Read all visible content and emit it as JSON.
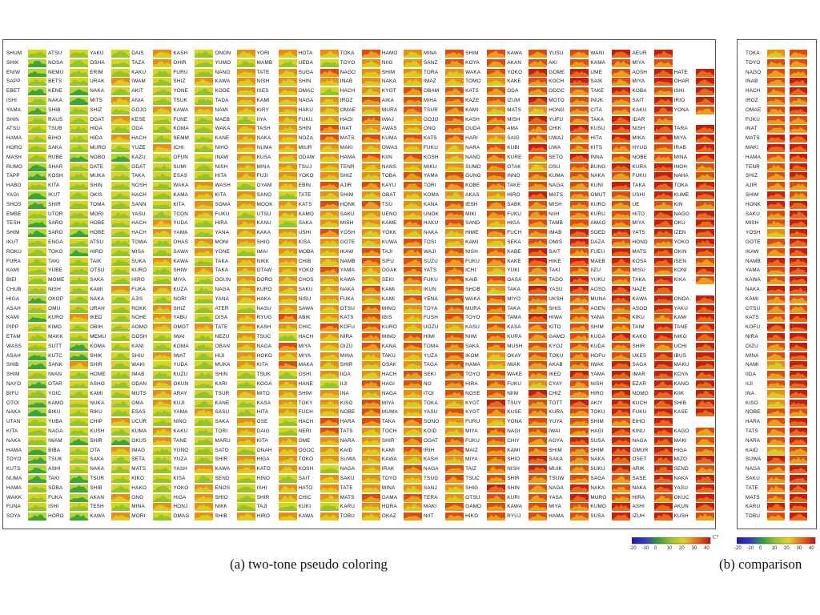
{
  "chart_data": [
    {
      "type": "heatmap",
      "panel": "a",
      "caption": "(a) two-tone pseudo coloring",
      "colorbar": {
        "ticks": [
          "-20",
          "-10",
          "0",
          "10",
          "20",
          "30",
          "40"
        ],
        "unit": "C°"
      },
      "stations": [
        [
          "SHUM",
          "ATSU",
          "YAKU",
          "DAIS",
          "KASH",
          "ONON",
          "YORI",
          "HOTA",
          "TOKA",
          "HAMO",
          "MINA",
          "SHIM",
          "KAWA",
          "YUSU",
          "WANI",
          "AEUR"
        ],
        [
          "SHIK",
          "NOSA",
          "OSHA",
          "TAZA",
          "OHIR",
          "YUMO",
          "MAMB",
          "UEDA",
          "TOYO",
          "NIIG",
          "SANZ",
          "KOYA",
          "AKAN",
          "AKI",
          "KAMA",
          "MIYA"
        ],
        [
          "ENIW",
          "NEMU",
          "ERIM",
          "KAKU",
          "FURU",
          "NANG",
          "TATE",
          "SUGA",
          "NAGO",
          "SHIM",
          "TORA",
          "WAKA",
          "YOKO",
          "GOME",
          "UME",
          "AOSH",
          "HATE"
        ],
        [
          "SAPP",
          "BETS",
          "URAK",
          "IWAM",
          "SHIZ",
          "KAWA",
          "NISH",
          "SHIN",
          "INAB",
          "NAKA",
          "IMAZ",
          "TOMO",
          "KAKE",
          "KOCH",
          "SAIK",
          "MIYA",
          "OHAR"
        ],
        [
          "EBET",
          "KENE",
          "NAKA",
          "AKIT",
          "YONE",
          "KODE",
          "ISES",
          "OMAC",
          "HACH",
          "KYOT",
          "OBAM",
          "KATS",
          "ODA",
          "ODOC",
          "TAKE",
          "KOBA",
          "ISHI"
        ],
        [
          "ISHI",
          "NAKA",
          "MITS",
          "ANIA",
          "TSUK",
          "TADA",
          "KAMI",
          "NAGA",
          "IROZ",
          "AIKA",
          "MIHA",
          "KAZE",
          "IZUM",
          "MOTO",
          "INUK",
          "SAIT",
          "IRIO"
        ],
        [
          "YAMA",
          "SHIB",
          "SHIZ",
          "GOJO",
          "KAWA",
          "NAMI",
          "KIRY",
          "HAKU",
          "OMAE",
          "MURA",
          "TSUR",
          "KAMI",
          "MATS",
          "HONG",
          "CITA",
          "KAKU",
          "YONA"
        ],
        [
          "SHIN",
          "RAUS",
          "OGAT",
          "KESE",
          "FUNE",
          "MAEB",
          "IIYA",
          "FUKU",
          "HAGI",
          "IMAJ",
          "GOJO",
          "KASH",
          "MISH",
          "YUFU",
          "TAKA",
          "IDAR"
        ],
        [
          "ATSU",
          "TSUB",
          "HIDA",
          "OGA",
          "KOMA",
          "WAKA",
          "TASH",
          "SHIN",
          "INAT",
          "AWAS",
          "ONO",
          "OUDA",
          "AMA",
          "CHIK",
          "KUSU",
          "NISH",
          "TARA"
        ],
        [
          "HAMA",
          "BIHO",
          "HIDA",
          "HACH",
          "SEMM",
          "KANE",
          "NAKA",
          "NOZA",
          "MATS",
          "KUMA",
          "KATS",
          "HARI",
          "SAIG",
          "UWAJ",
          "HITA",
          "MIKA",
          "MIYA"
        ],
        [
          "HORO",
          "SAKA",
          "MURO",
          "YUZE",
          "ICHI",
          "NIHO",
          "NUMA",
          "MIUR",
          "MAKI",
          "OWAS",
          "FUKU",
          "NARA",
          "KUBI",
          "UWA",
          "KITS",
          "HYUG",
          "IRAB"
        ],
        [
          "MASH",
          "RUBE",
          "NOBO",
          "KAZU",
          "OFUN",
          "INAW",
          "KUSA",
          "ODAW",
          "HAMA",
          "KIIN",
          "KOSH",
          "NAND",
          "KURE",
          "SETO",
          "INNA",
          "NOBE",
          "MINA"
        ],
        [
          "RUMO",
          "SHAR",
          "DATE",
          "ODAT",
          "SUMI",
          "NISH",
          "MINA",
          "TSUJ",
          "TENR",
          "NANS",
          "MIKU",
          "SUMO",
          "OTAK",
          "OSU",
          "BUNG",
          "KURA",
          "INOH"
        ],
        [
          "TAPP",
          "KOSH",
          "MUKA",
          "TAKA",
          "ESAS",
          "HITA",
          "FUJI",
          "YOKO",
          "SHIZ",
          "TOBA",
          "YAMA",
          "GUNG",
          "INNO",
          "KUMA",
          "NAKA",
          "FUKU",
          "NAHA"
        ],
        [
          "HABO",
          "KITA",
          "SHIN",
          "NOSH",
          "WAKA",
          "WASH",
          "OYAM",
          "EBIN",
          "AJIR",
          "KAYU",
          "TORI",
          "KOBE",
          "TAKE",
          "NAGA",
          "KUNI",
          "TAKA",
          "TOKA"
        ],
        [
          "YAGI",
          "IKUT",
          "OKIS",
          "HACH",
          "KAMA",
          "KITA",
          "SANO",
          "TATE",
          "SHIM",
          "OBAT",
          "KOMA",
          "AKAS",
          "HIRO",
          "MATS",
          "OMUT",
          "USHI",
          "KUME"
        ],
        [
          "SHOS",
          "SHIR",
          "TOMA",
          "SANN",
          "KITA",
          "SOMA",
          "MOOK",
          "KATS",
          "HONK",
          "TSU",
          "KANA",
          "IESH",
          "SABK",
          "MISH",
          "KURO",
          "UE",
          "KIN"
        ],
        [
          "EMBE",
          "UTOR",
          "MORI",
          "YASU",
          "TCON",
          "FUKU",
          "UTSU",
          "KAMO",
          "SAKU",
          "UENO",
          "UNOK",
          "MIKI",
          "FUKU",
          "NIIH",
          "KURU",
          "HITO",
          "NAGO"
        ],
        [
          "TESH",
          "SARO",
          "HOBE",
          "HACH",
          "YUDA",
          "HIRA",
          "KANU",
          "SAKA",
          "MISH",
          "KAME",
          "HAKU",
          "SAND",
          "HIGA",
          "TAMB",
          "AMAG",
          "MIYA",
          "OKU"
        ],
        [
          "SHIM",
          "SARO",
          "HOBE",
          "HACH",
          "YAMA",
          "YANA",
          "KAKA",
          "USHI",
          "YOSH",
          "YOKK",
          "NAKA",
          "HIME",
          "FUCH",
          "IMAB",
          "SOED",
          "YATS",
          "IZEN"
        ],
        [
          "IKUT",
          "ENGA",
          "ATSU",
          "TOWA",
          "OHAS",
          "MONI",
          "SHIO",
          "KISA",
          "GOTE",
          "KUWA",
          "TOSI",
          "KAMI",
          "SEKA",
          "OMIS",
          "DAZA",
          "HOND",
          "YOKO"
        ],
        [
          "ROKU",
          "TOKO",
          "HIRO",
          "MISA",
          "SAWA",
          "YONE",
          "IMAI",
          "MOBA",
          "IKAW",
          "TAJI",
          "WAJI",
          "NISH",
          "KABE",
          "SAIT",
          "FUEU",
          "MATS",
          "OKIN"
        ],
        [
          "FURA",
          "TAKI",
          "TAIK",
          "SUKA",
          "KAWA",
          "TAKA",
          "NIKK",
          "CHIB",
          "NAMB",
          "SIFU",
          "SUZU",
          "FUKU",
          "KAKE",
          "HIKE",
          "MAEB",
          "KOSA",
          "ISEN"
        ],
        [
          "KAMI",
          "YUBE",
          "OTSU",
          "KURO",
          "SHIW",
          "TAKA",
          "OTAW",
          "YOKO",
          "YAMA",
          "OGAK",
          "YATS",
          "ICHI",
          "YUKI",
          "TAKI",
          "IIZU",
          "MISU",
          "KONI"
        ],
        [
          "BIEI",
          "MOME",
          "SAKA",
          "HIRO",
          "MIYA",
          "OGUN",
          "DORO",
          "CHOS",
          "KAWA",
          "SEKI",
          "FUKU",
          "KAIB",
          "OASA",
          "TADO",
          "YUKU",
          "TAKA",
          "KIKA"
        ],
        [
          "CHUB",
          "NISH",
          "KAMI",
          "FUKA",
          "KUZA",
          "NAGA",
          "KURO",
          "SAKU",
          "NAKA",
          "KAMI",
          "IKUN",
          "SHOB",
          "TAKA",
          "YASU",
          "AOSO",
          "NAZE"
        ],
        [
          "HIGA",
          "OKOP",
          "NAKA",
          "AJIS",
          "NORI",
          "YANA",
          "HAKA",
          "NISU",
          "FUKA",
          "KAMI",
          "YENA",
          "WAKA",
          "MIYO",
          "UKSH",
          "MUNA",
          "KAWA",
          "ONOA"
        ],
        [
          "ASAH",
          "OMU",
          "URAH",
          "ROKK",
          "SHIZ",
          "ATER",
          "NASU",
          "SAWA",
          "OTSU",
          "MINO",
          "TOYA",
          "MURA",
          "TAKA",
          "SHIS",
          "AGEN",
          "ASOO",
          "YAKU"
        ],
        [
          "KAMI",
          "KURO",
          "IKED",
          "NOHE",
          "YABU",
          "OISA",
          "RYUG",
          "ABIK",
          "KATS",
          "IBIS",
          "FUSH",
          "TOYO",
          "TAMA",
          "HIWA",
          "YANA",
          "KIKU",
          "KAMI"
        ],
        [
          "PIPP",
          "KIMO",
          "OBIH",
          "AOMO",
          "OMOT",
          "TATE",
          "KASH",
          "CHIC",
          "KOFU",
          "KURO",
          "UOZU",
          "KASU",
          "KASA",
          "KITO",
          "SHIM",
          "TAIM",
          "TANE"
        ],
        [
          "ETAM",
          "MAKK",
          "MEMU",
          "GOSH",
          "IWAI",
          "NEZU",
          "TSUC",
          "HACH",
          "NIRA",
          "MINO",
          "HIMI",
          "NIIM",
          "KURA",
          "GAMO",
          "KUGA",
          "KAKO",
          "NIKO"
        ],
        [
          "WASS",
          "SUTT",
          "KOMA",
          "KANI",
          "KOMA",
          "OBAN",
          "NAGA",
          "MIYA",
          "OIZU",
          "KANA",
          "TOMA",
          "SAKA",
          "MUSH",
          "KYOJ",
          "KUDA",
          "SHIR",
          "UCHI"
        ],
        [
          "ASAH",
          "KUTC",
          "SHIK",
          "SHIU",
          "IWAT",
          "HIJI",
          "HOKO",
          "MIYA",
          "MINA",
          "TAKU",
          "YUZA",
          "IKOM",
          "OKAY",
          "TOKU",
          "HOFU",
          "UKES",
          "IBUS"
        ],
        [
          "SHIB",
          "SANK",
          "SHIR",
          "WAKI",
          "YUDA",
          "MUKA",
          "KITA",
          "MAKA",
          "SHIR",
          "OSAK",
          "TAGA",
          "HAMA",
          "IWAK",
          "AKAB",
          "IWAK",
          "SAGA",
          "MAKU"
        ],
        [
          "SHIM",
          "IWAN",
          "HOME",
          "IMAB",
          "KUZU",
          "SHIN",
          "TSUK",
          "OSHI",
          "IIDA",
          "HACH",
          "SEKI",
          "TOYO",
          "WAKE",
          "IKED",
          "YAMA",
          "IMAR",
          "KOYA"
        ],
        [
          "NAYO",
          "OTAR",
          "ASHO",
          "ODAN",
          "OKUN",
          "KARI",
          "KOGA",
          "HANE",
          "IIJI",
          "HAGI",
          "NO",
          "HIRA",
          "FUKU",
          "CYAY",
          "NISH",
          "EZAR",
          "KANO"
        ],
        [
          "BIFU",
          "YOIC",
          "KAMI",
          "MUTS",
          "ARAY",
          "TSUR",
          "MITO",
          "SHIM",
          "INA",
          "NAGA",
          "ITOI",
          "NOSE",
          "NIIM",
          "CHIZ",
          "HIRO",
          "NOMO",
          "KIIK"
        ],
        [
          "OTOI",
          "KAMO",
          "NUKA",
          "OMA",
          "KUJI",
          "KANE",
          "KASA",
          "TOKY",
          "KISO",
          "MIYA",
          "TOKA",
          "KYOT",
          "TSUY",
          "TOTT",
          "AKIY",
          "KUCH",
          "SHIB"
        ],
        [
          "NAKA",
          "BIKU",
          "RIKU",
          "ESAS",
          "YAMA",
          "SASU",
          "HITA",
          "FUCH",
          "NOBE",
          "MUMA",
          "YASU",
          "KYOT",
          "KUSE",
          "KURA",
          "TOKU",
          "FUKU",
          "KASE"
        ],
        [
          "UTAN",
          "YUBA",
          "CHIP",
          "UCUR",
          "NINO",
          "SAKA",
          "OSE",
          "HACH",
          "HARA",
          "TAKA",
          "SONO",
          "FURU",
          "YONA",
          "YUYA",
          "SHIM",
          "EIHO"
        ],
        [
          "KITA",
          "NAGA",
          "KUSH",
          "KUMA",
          "KAKU",
          "TORI",
          "DAIG",
          "NERI",
          "TATS",
          "TOCH",
          "KOID",
          "MIYA",
          "NAGI",
          "IWAI",
          "HAGI",
          "KINU",
          "KAGO"
        ],
        [
          "NAKA",
          "IWAM",
          "SHIR",
          "OKUS",
          "TANE",
          "MARU",
          "KITA",
          "OME",
          "NARA",
          "SHIR",
          "OGAT",
          "FUKU",
          "CHIY",
          "AOYA",
          "SUSA",
          "NAGA",
          "MAKI"
        ],
        [
          "HAMA",
          "BIBA",
          "OTA",
          "IMAG",
          "YUNO",
          "SATO",
          "ONAH",
          "OGOC",
          "KAID",
          "KAMI",
          "IRIH",
          "MAIZ",
          "KAMI",
          "SHIM",
          "SHIM",
          "OMUR",
          "HIGA"
        ],
        [
          "TOYO",
          "TSUK",
          "SAKA",
          "SETA",
          "YUZA",
          "SHIR",
          "HIGA",
          "TOKO",
          "SUWA",
          "KAWA",
          "KASH",
          "MIYA",
          "SHIO",
          "SAKA",
          "NAKA",
          "OSET",
          "MIZO"
        ],
        [
          "KUTS",
          "ASHI",
          "NAKA",
          "MATS",
          "YASH",
          "KAWA",
          "KATO",
          "KOSH",
          "NAGA",
          "IRAK",
          "NAGA",
          "TAIZ",
          "NISH",
          "MUIK",
          "SUKU",
          "ARIK",
          "SEND"
        ],
        [
          "NUMA",
          "TAKI",
          "TSUR",
          "KIKO",
          "KISA",
          "SEND",
          "HINO",
          "SAIT",
          "SAKU",
          "TOYO",
          "TSUG",
          "TSUC",
          "SHIR",
          "TSUW",
          "SAGA",
          "SASE",
          "NAKA"
        ],
        [
          "HAMA",
          "SOBA",
          "SHIB",
          "HAKO",
          "YOKO",
          "ENOS",
          "ISHI",
          "HATO",
          "TATE",
          "MINA",
          "SANJ",
          "SHIG",
          "SHIN",
          "NAGA",
          "NAKA",
          "NAKA",
          "YASU"
        ],
        [
          "WAKK",
          "FUKA",
          "AKAN",
          "ONO",
          "HIGA",
          "SHIO",
          "SHIR",
          "CHIC",
          "MATS",
          "GAMA",
          "TERA",
          "OTSU",
          "KURI",
          "YASA",
          "MURO",
          "HIRA",
          "OKUC"
        ],
        [
          "FUNA",
          "ISHI",
          "TESH",
          "MINA",
          "HONJ",
          "NIKK",
          "TAJI",
          "KUKI",
          "KARU",
          "HORA",
          "MAKI",
          "GAMO",
          "KAWA",
          "MIYA",
          "KUMO",
          "ASHI",
          "AKUN"
        ],
        [
          "SOYA",
          "HORO",
          "KAWA",
          "MORI",
          "OMAG",
          "SHIB",
          "HIRO",
          "KAWA",
          "TOBU",
          "OKAZ",
          "NIIT",
          "HIKO",
          "RYUJ",
          "HAMA",
          "SUSA",
          "IZUH",
          "KUSH"
        ]
      ]
    },
    {
      "type": "heatmap",
      "panel": "b",
      "caption": "(b) comparison",
      "colorbar": {
        "ticks": [
          "-20",
          "-10",
          "0",
          "10",
          "20",
          "30",
          "40"
        ]
      },
      "stations": [
        "TOKA",
        "TOYO",
        "NAGO",
        "INAB",
        "HACH",
        "IROZ",
        "OMAE",
        "FUKU",
        "INAT",
        "MATS",
        "MAKI",
        "HAMA",
        "TENR",
        "SHIZ",
        "AJIR",
        "SHIM",
        "HONK",
        "SAKU",
        "MISH",
        "YOSH",
        "GOTE",
        "IKAW",
        "NAMB",
        "YAMA",
        "KAWA",
        "NAKA",
        "KAMI",
        "OTSU",
        "KATS",
        "KOFU",
        "NIRA",
        "OIZU",
        "MINA",
        "NAMI",
        "IIDA",
        "IIJI",
        "INA",
        "KISO",
        "NOBE",
        "HARA",
        "TATS",
        "NARA",
        "KAID",
        "SUWA",
        "NAGA",
        "SAKU",
        "TATE",
        "MATS",
        "KARU",
        "TOBU"
      ]
    }
  ]
}
